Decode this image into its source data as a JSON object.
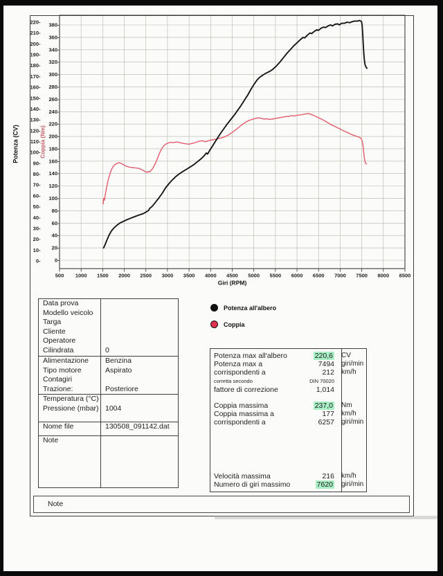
{
  "colors": {
    "highlight": "#a9efc6",
    "power_line": "#161616",
    "torque_line": "#e25a6c",
    "legend_torque_dot": "#e0314f",
    "legend_power_dot": "#111111",
    "grid": "#b8b4aa",
    "plot_border": "#4b4b4b",
    "torque_axis_title": "#c2626c"
  },
  "legend": {
    "items": [
      {
        "label": "Potenza all'albero"
      },
      {
        "label": "Coppia"
      }
    ]
  },
  "info_table": {
    "sections": [
      {
        "rows": [
          {
            "label": "Data prova",
            "value": ""
          },
          {
            "label": "Modello veicolo",
            "value": ""
          },
          {
            "label": "Targa",
            "value": ""
          },
          {
            "label": "Cliente",
            "value": ""
          },
          {
            "label": "Operatore",
            "value": ""
          },
          {
            "label": "Cilindrata",
            "value": "0"
          }
        ]
      },
      {
        "rows": [
          {
            "label": "Alimentazione",
            "value": "Benzina"
          },
          {
            "label": "Tipo motore",
            "value": "Aspirato"
          },
          {
            "label": "Contagiri",
            "value": ""
          },
          {
            "label": "Trazione:",
            "value": "Posteriore"
          }
        ]
      },
      {
        "rows": [
          {
            "label": "Temperatura (°C)",
            "value": ""
          },
          {
            "label": "Pressione (mbar)",
            "value": "1004"
          }
        ]
      },
      {
        "rows": [
          {
            "label": "Nome file",
            "value": "130508_091142.dat"
          }
        ]
      },
      {
        "rows": [
          {
            "label": "Note",
            "value": ""
          }
        ]
      }
    ]
  },
  "results_table": {
    "blocks": [
      {
        "rows": [
          {
            "label": "Potenza max all'albero",
            "value": "220,6",
            "unit": "CV",
            "highlight": true
          },
          {
            "label": "Potenza max a",
            "value": "7494",
            "unit": "giri/min"
          },
          {
            "label": "corrispondenti a",
            "value": "212",
            "unit": "km/h"
          },
          {
            "label": "corretta secondo",
            "value": "DIN 70020",
            "unit": "",
            "small": true
          },
          {
            "label": "fattore di correzione",
            "value": "1,014",
            "unit": ""
          }
        ]
      },
      {
        "rows": [
          {
            "label": "Coppia massima",
            "value": "237,0",
            "unit": "Nm",
            "highlight": true
          },
          {
            "label": "Coppia massima a",
            "value": "177",
            "unit": "km/h"
          },
          {
            "label": "corrispondenti a",
            "value": "6257",
            "unit": "giri/min"
          }
        ]
      },
      {
        "rows": [
          {
            "label": "Velocità massima",
            "value": "216",
            "unit": "km/h"
          },
          {
            "label": "Numero di giri massimo",
            "value": "7620",
            "unit": "giri/min",
            "highlight": true
          }
        ]
      }
    ]
  },
  "note_bar": {
    "label": "Note"
  },
  "chart_data": {
    "type": "line",
    "title": "",
    "xlabel": "Giri (RPM)",
    "x_axis": {
      "min": 500,
      "max": 8500,
      "step": 500
    },
    "y_axis_power": {
      "label": "Potenza (CV)",
      "min": 0,
      "max": 220,
      "step": 10
    },
    "y_axis_torque": {
      "label": "Coppia (Nm)",
      "min": 0,
      "max": 380,
      "step": 20
    },
    "grid": true,
    "legend_position": "below-chart-left",
    "series": [
      {
        "name": "Coppia",
        "unit": "Nm",
        "axis": "torque",
        "points": [
          [
            1510,
            91
          ],
          [
            1525,
            100
          ],
          [
            1540,
            97
          ],
          [
            1565,
            108
          ],
          [
            1595,
            119
          ],
          [
            1625,
            129
          ],
          [
            1660,
            138
          ],
          [
            1700,
            146
          ],
          [
            1740,
            151
          ],
          [
            1780,
            154.5
          ],
          [
            1830,
            156.5
          ],
          [
            1880,
            157.5
          ],
          [
            1930,
            156.5
          ],
          [
            1980,
            154.5
          ],
          [
            2030,
            152.5
          ],
          [
            2090,
            151
          ],
          [
            2150,
            150
          ],
          [
            2210,
            149.5
          ],
          [
            2270,
            149
          ],
          [
            2330,
            148.5
          ],
          [
            2390,
            147
          ],
          [
            2440,
            145
          ],
          [
            2490,
            143
          ],
          [
            2530,
            142
          ],
          [
            2560,
            143.5
          ],
          [
            2585,
            142.5
          ],
          [
            2620,
            145
          ],
          [
            2665,
            149
          ],
          [
            2710,
            155
          ],
          [
            2760,
            163
          ],
          [
            2810,
            172
          ],
          [
            2860,
            179.5
          ],
          [
            2910,
            184.5
          ],
          [
            2960,
            187.5
          ],
          [
            3020,
            189.5
          ],
          [
            3080,
            190.5
          ],
          [
            3140,
            190
          ],
          [
            3200,
            191
          ],
          [
            3260,
            190.5
          ],
          [
            3320,
            189.5
          ],
          [
            3380,
            188.5
          ],
          [
            3440,
            188
          ],
          [
            3500,
            187.5
          ],
          [
            3560,
            188.5
          ],
          [
            3620,
            189.5
          ],
          [
            3680,
            191
          ],
          [
            3740,
            192.5
          ],
          [
            3800,
            193
          ],
          [
            3850,
            192
          ],
          [
            3890,
            191.5
          ],
          [
            3940,
            193
          ],
          [
            4000,
            194
          ],
          [
            4080,
            195
          ],
          [
            4160,
            196
          ],
          [
            4240,
            197.5
          ],
          [
            4320,
            199
          ],
          [
            4400,
            202
          ],
          [
            4480,
            205.5
          ],
          [
            4560,
            209.5
          ],
          [
            4640,
            214
          ],
          [
            4720,
            218.5
          ],
          [
            4800,
            222.5
          ],
          [
            4880,
            225.5
          ],
          [
            4960,
            227.5
          ],
          [
            5040,
            229
          ],
          [
            5120,
            230
          ],
          [
            5180,
            229
          ],
          [
            5240,
            228
          ],
          [
            5300,
            228.5
          ],
          [
            5360,
            227.5
          ],
          [
            5420,
            228
          ],
          [
            5500,
            229
          ],
          [
            5580,
            230
          ],
          [
            5660,
            231
          ],
          [
            5740,
            232
          ],
          [
            5820,
            232.5
          ],
          [
            5880,
            233.5
          ],
          [
            5930,
            233
          ],
          [
            5990,
            234
          ],
          [
            6050,
            234.5
          ],
          [
            6110,
            235
          ],
          [
            6170,
            236
          ],
          [
            6230,
            236.5
          ],
          [
            6257,
            237
          ],
          [
            6310,
            236
          ],
          [
            6370,
            234.5
          ],
          [
            6430,
            232.5
          ],
          [
            6490,
            230.5
          ],
          [
            6550,
            228.5
          ],
          [
            6610,
            226.5
          ],
          [
            6670,
            224
          ],
          [
            6730,
            221.5
          ],
          [
            6790,
            219
          ],
          [
            6850,
            217
          ],
          [
            6910,
            215
          ],
          [
            6970,
            213
          ],
          [
            7040,
            210.5
          ],
          [
            7110,
            208
          ],
          [
            7180,
            206
          ],
          [
            7250,
            203.5
          ],
          [
            7320,
            201.5
          ],
          [
            7390,
            200
          ],
          [
            7450,
            198.5
          ],
          [
            7490,
            196.5
          ],
          [
            7515,
            191
          ],
          [
            7535,
            182
          ],
          [
            7550,
            172
          ],
          [
            7565,
            163
          ],
          [
            7585,
            157.5
          ],
          [
            7610,
            155.5
          ]
        ]
      },
      {
        "name": "Potenza all'albero",
        "unit": "CV",
        "axis": "power",
        "points": [
          [
            1520,
            12
          ],
          [
            1555,
            15
          ],
          [
            1600,
            19.5
          ],
          [
            1650,
            24
          ],
          [
            1700,
            27.5
          ],
          [
            1760,
            30.5
          ],
          [
            1830,
            33
          ],
          [
            1900,
            35
          ],
          [
            1980,
            36.5
          ],
          [
            2060,
            38
          ],
          [
            2150,
            39.5
          ],
          [
            2250,
            41
          ],
          [
            2350,
            42.5
          ],
          [
            2430,
            43.5
          ],
          [
            2500,
            45
          ],
          [
            2560,
            46.5
          ],
          [
            2590,
            48.5
          ],
          [
            2650,
            50.5
          ],
          [
            2720,
            54
          ],
          [
            2800,
            58
          ],
          [
            2880,
            62.5
          ],
          [
            2960,
            67.5
          ],
          [
            3040,
            71.5
          ],
          [
            3120,
            75
          ],
          [
            3200,
            78
          ],
          [
            3280,
            80.5
          ],
          [
            3360,
            82.5
          ],
          [
            3440,
            84.5
          ],
          [
            3520,
            86.5
          ],
          [
            3600,
            88.5
          ],
          [
            3680,
            91
          ],
          [
            3760,
            93.5
          ],
          [
            3840,
            96.5
          ],
          [
            3900,
            99.5
          ],
          [
            3930,
            98.5
          ],
          [
            3980,
            102
          ],
          [
            4060,
            107
          ],
          [
            4140,
            112
          ],
          [
            4220,
            117
          ],
          [
            4300,
            121.5
          ],
          [
            4380,
            126
          ],
          [
            4460,
            130
          ],
          [
            4540,
            134
          ],
          [
            4620,
            138.5
          ],
          [
            4700,
            143
          ],
          [
            4780,
            148
          ],
          [
            4860,
            153
          ],
          [
            4940,
            158.5
          ],
          [
            5010,
            163
          ],
          [
            5070,
            166.5
          ],
          [
            5130,
            169
          ],
          [
            5200,
            171
          ],
          [
            5280,
            173
          ],
          [
            5360,
            174.5
          ],
          [
            5440,
            176.5
          ],
          [
            5520,
            179.5
          ],
          [
            5600,
            183
          ],
          [
            5680,
            187
          ],
          [
            5760,
            191
          ],
          [
            5840,
            194.5
          ],
          [
            5920,
            198
          ],
          [
            6000,
            201
          ],
          [
            6080,
            204
          ],
          [
            6140,
            206
          ],
          [
            6180,
            205.5
          ],
          [
            6240,
            208
          ],
          [
            6300,
            210
          ],
          [
            6340,
            209.5
          ],
          [
            6400,
            211.5
          ],
          [
            6460,
            213
          ],
          [
            6500,
            212.5
          ],
          [
            6560,
            214.5
          ],
          [
            6620,
            215.5
          ],
          [
            6660,
            215
          ],
          [
            6720,
            216.5
          ],
          [
            6780,
            217.5
          ],
          [
            6820,
            216.5
          ],
          [
            6880,
            218
          ],
          [
            6940,
            218.5
          ],
          [
            6980,
            217.5
          ],
          [
            7040,
            219
          ],
          [
            7100,
            219
          ],
          [
            7160,
            220
          ],
          [
            7220,
            219.5
          ],
          [
            7280,
            220.5
          ],
          [
            7340,
            221
          ],
          [
            7400,
            221
          ],
          [
            7450,
            221.5
          ],
          [
            7494,
            220.6
          ],
          [
            7510,
            217
          ],
          [
            7525,
            207
          ],
          [
            7540,
            196
          ],
          [
            7555,
            187
          ],
          [
            7575,
            181
          ],
          [
            7600,
            178.5
          ],
          [
            7620,
            177.5
          ]
        ]
      }
    ],
    "annotations": {
      "max_power_cv": "220,6",
      "max_power_rpm": 7494,
      "max_torque_nm": "237,0",
      "max_torque_rpm": 6257,
      "max_rpm": 7620
    }
  }
}
